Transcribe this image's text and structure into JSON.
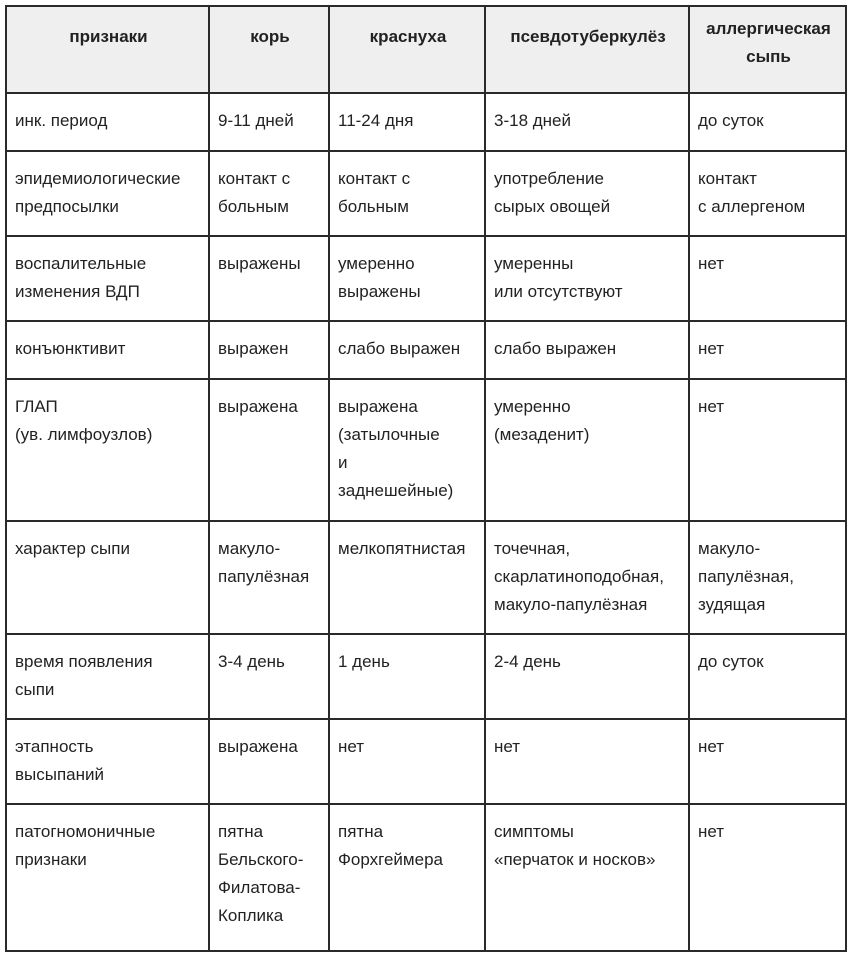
{
  "headers": [
    "признаки",
    "корь",
    "краснуха",
    "псевдотуберкулёз",
    "аллергическая\nсыпь"
  ],
  "rows": [
    [
      "инк. период",
      "9-11 дней",
      "11-24 дня",
      "3-18 дней",
      "до суток"
    ],
    [
      "эпидемиологические\nпредпосылки",
      "контакт с\nбольным",
      "контакт с\nбольным",
      "употребление\nсырых овощей",
      "контакт\nс аллергеном"
    ],
    [
      "воспалительные\nизменения ВДП",
      "выражены",
      "умеренно\nвыражены",
      "умеренны\nили отсутствуют",
      "нет"
    ],
    [
      "конъюнктивит",
      "выражен",
      "слабо выражен",
      "слабо выражен",
      "нет"
    ],
    [
      "ГЛАП\n(ув. лимфоузлов)",
      "выражена",
      "выражена\n(затылочные\nи\nзаднешейные)",
      "умеренно\n(мезаденит)",
      "нет"
    ],
    [
      "характер сыпи",
      "макуло-\nпапулёзная",
      "мелкопятнистая",
      "точечная,\nскарлатиноподобная,\nмакуло-папулёзная",
      "макуло-\nпапулёзная,\nзудящая"
    ],
    [
      "время появления\nсыпи",
      "3-4 день",
      "1 день",
      "2-4 день",
      "до суток"
    ],
    [
      "этапность\nвысыпаний",
      "выражена",
      "нет",
      "нет",
      "нет"
    ],
    [
      "патогномоничные\nпризнаки",
      "пятна\nБельского-\nФилатова-\nКоплика",
      "пятна\nФорхгеймера",
      "симптомы\n«перчаток и носков»",
      "нет"
    ]
  ]
}
